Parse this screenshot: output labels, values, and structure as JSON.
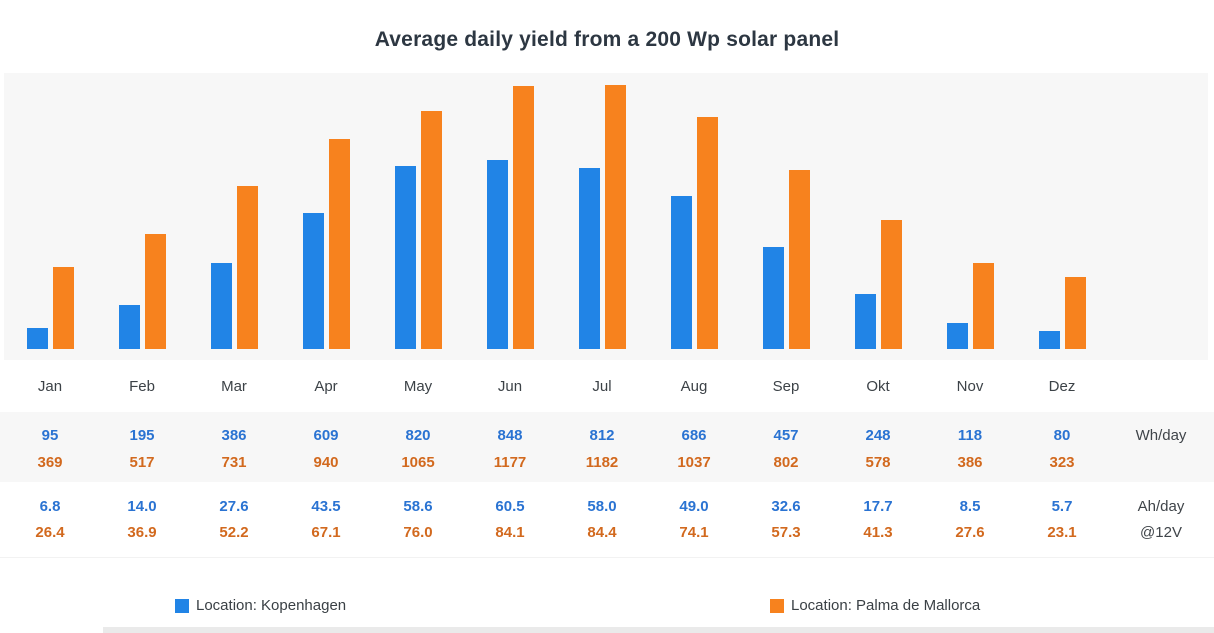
{
  "title": "Average daily yield from a 200 Wp solar panel",
  "chart_data": {
    "type": "bar",
    "title": "Average daily yield from a 200 Wp solar panel",
    "categories": [
      "Jan",
      "Feb",
      "Mar",
      "Apr",
      "May",
      "Jun",
      "Jul",
      "Aug",
      "Sep",
      "Okt",
      "Nov",
      "Dez"
    ],
    "series": [
      {
        "name": "Location: Kopenhagen",
        "color": "#2184e6",
        "wh_per_day": [
          95,
          195,
          386,
          609,
          820,
          848,
          812,
          686,
          457,
          248,
          118,
          80
        ],
        "ah_per_day": [
          "6.8",
          "14.0",
          "27.6",
          "43.5",
          "58.6",
          "60.5",
          "58.0",
          "49.0",
          "32.6",
          "17.7",
          "8.5",
          "5.7"
        ]
      },
      {
        "name": "Location: Palma de Mallorca",
        "color": "#f7821e",
        "wh_per_day": [
          369,
          517,
          731,
          940,
          1065,
          1177,
          1182,
          1037,
          802,
          578,
          386,
          323
        ],
        "ah_per_day": [
          "26.4",
          "36.9",
          "52.2",
          "67.1",
          "76.0",
          "84.1",
          "84.4",
          "74.1",
          "57.3",
          "41.3",
          "27.6",
          "23.1"
        ]
      }
    ],
    "ymax": 1182,
    "ylim": [
      0,
      1182
    ],
    "grid": false,
    "legend_position": "bottom",
    "units_row1": "Wh/day",
    "units_row2": "Ah/day @12V"
  },
  "units": {
    "wh": "Wh/day",
    "ah": "Ah/day",
    "ah_v": "@12V"
  },
  "colors": {
    "bar_blue": "#2184e6",
    "bar_orange": "#f7821e",
    "value_blue": "#2a73d2",
    "value_orange": "#d2691e",
    "row_bg": "#f7f7f7",
    "title_text": "#2d3742"
  }
}
